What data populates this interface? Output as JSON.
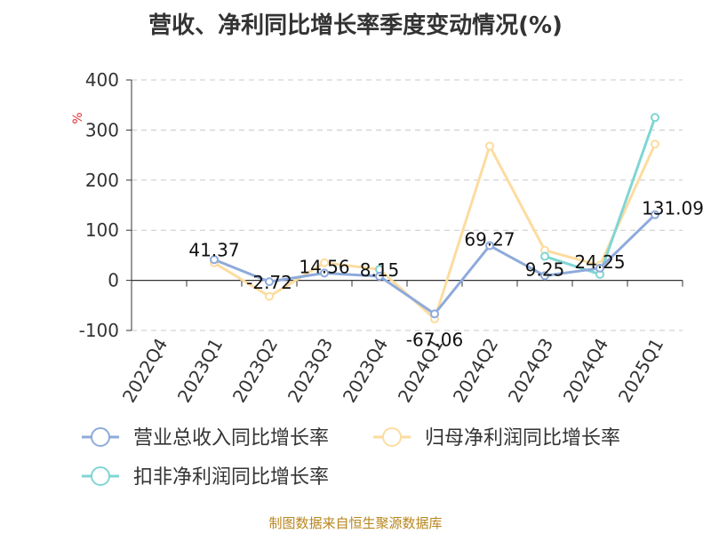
{
  "title": "营收、净利同比增长率季度变动情况(%)",
  "unit_label": "%",
  "source": "制图数据来自恒生聚源数据库",
  "chart_data": {
    "type": "line",
    "title": "营收、净利同比增长率季度变动情况(%)",
    "ylabel": "%",
    "ylim": [
      -100,
      400
    ],
    "yticks": [
      400,
      300,
      200,
      100,
      0,
      -100
    ],
    "categories": [
      "2022Q4",
      "2023Q1",
      "2023Q2",
      "2023Q3",
      "2023Q4",
      "2024Q1",
      "2024Q2",
      "2024Q3",
      "2024Q4",
      "2025Q1"
    ],
    "grid": true,
    "legend_position": "bottom",
    "series": [
      {
        "name": "营业总收入同比增长率",
        "color": "#8eaadb",
        "values": [
          null,
          41.37,
          -2.72,
          14.56,
          8.15,
          -67.06,
          69.27,
          9.25,
          24.25,
          131.09
        ],
        "labels": [
          null,
          "41.37",
          "-2.72",
          "14.56",
          "8.15",
          "-67.06",
          "69.27",
          "9.25",
          "24.25",
          "131.09"
        ]
      },
      {
        "name": "归母净利润同比增长率",
        "color": "#fcdc9f",
        "values": [
          null,
          35,
          -32,
          35,
          22,
          -77,
          268,
          60,
          30,
          272
        ]
      },
      {
        "name": "扣非净利润同比增长率",
        "color": "#7fd6d4",
        "values": [
          null,
          null,
          null,
          null,
          22,
          null,
          null,
          48,
          12,
          325
        ]
      }
    ]
  }
}
